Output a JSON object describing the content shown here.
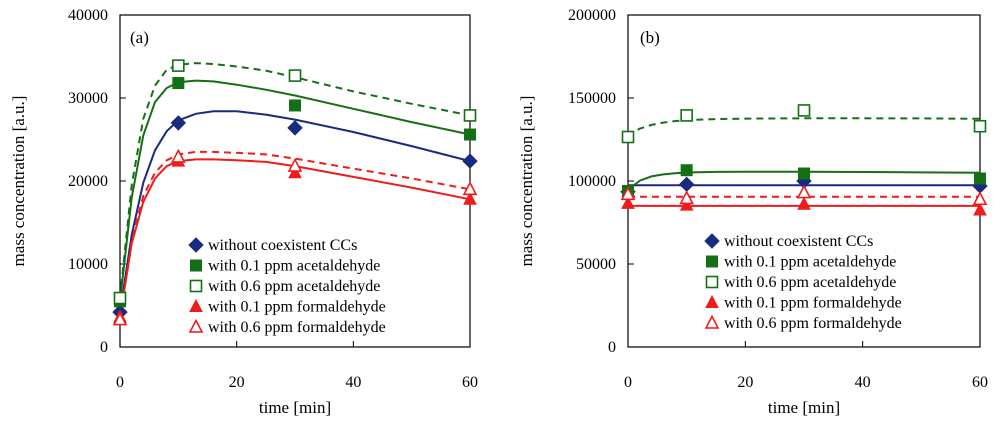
{
  "chart_data": [
    {
      "type": "scatter",
      "panel_label": "(a)",
      "xlabel": "time [min]",
      "ylabel": "mass concentration [a.u.]",
      "xlim": [
        0,
        60
      ],
      "ylim": [
        0,
        40000
      ],
      "xticks": [
        0,
        20,
        40,
        60
      ],
      "yticks": [
        0,
        10000,
        20000,
        30000,
        40000
      ],
      "legend_position": "lower-right",
      "series": [
        {
          "key": "none",
          "name": "without coexistent CCs",
          "color": "#1a2a80",
          "marker": "diamond",
          "filled": true,
          "dash": false,
          "x": [
            0,
            10,
            30,
            60
          ],
          "y": [
            4200,
            27000,
            26400,
            22400
          ],
          "fit": [
            [
              0,
              4200
            ],
            [
              2,
              13500
            ],
            [
              4,
              19800
            ],
            [
              6,
              23700
            ],
            [
              8,
              26000
            ],
            [
              10,
              27300
            ],
            [
              13,
              28100
            ],
            [
              16,
              28400
            ],
            [
              20,
              28400
            ],
            [
              25,
              28000
            ],
            [
              30,
              27400
            ],
            [
              40,
              25900
            ],
            [
              50,
              24200
            ],
            [
              60,
              22400
            ]
          ]
        },
        {
          "key": "acet01",
          "name": "with 0.1 ppm acetaldehyde",
          "color": "#157015",
          "marker": "square",
          "filled": true,
          "dash": false,
          "x": [
            0,
            10,
            30,
            60
          ],
          "y": [
            5500,
            31800,
            29100,
            25600
          ],
          "fit": [
            [
              0,
              5500
            ],
            [
              2,
              18000
            ],
            [
              4,
              25500
            ],
            [
              6,
              29500
            ],
            [
              8,
              31200
            ],
            [
              10,
              31900
            ],
            [
              13,
              32100
            ],
            [
              16,
              32000
            ],
            [
              20,
              31600
            ],
            [
              25,
              31000
            ],
            [
              30,
              30300
            ],
            [
              40,
              28700
            ],
            [
              50,
              27100
            ],
            [
              60,
              25600
            ]
          ]
        },
        {
          "key": "acet06",
          "name": "with 0.6 ppm acetaldehyde",
          "color": "#157015",
          "marker": "square",
          "filled": false,
          "dash": true,
          "x": [
            0,
            10,
            30,
            60
          ],
          "y": [
            5900,
            33900,
            32700,
            27900
          ],
          "fit": [
            [
              0,
              5900
            ],
            [
              2,
              19500
            ],
            [
              4,
              27500
            ],
            [
              6,
              31500
            ],
            [
              8,
              33400
            ],
            [
              10,
              34000
            ],
            [
              13,
              34200
            ],
            [
              16,
              34100
            ],
            [
              20,
              33800
            ],
            [
              25,
              33300
            ],
            [
              30,
              32500
            ],
            [
              40,
              30800
            ],
            [
              50,
              29300
            ],
            [
              60,
              27900
            ]
          ]
        },
        {
          "key": "form01",
          "name": "with 0.1 ppm formaldehyde",
          "color": "#ee1c1c",
          "marker": "triangle",
          "filled": true,
          "dash": false,
          "x": [
            0,
            10,
            30,
            60
          ],
          "y": [
            3600,
            22400,
            21000,
            17800
          ],
          "fit": [
            [
              0,
              3600
            ],
            [
              2,
              12500
            ],
            [
              4,
              17500
            ],
            [
              6,
              20300
            ],
            [
              8,
              21800
            ],
            [
              10,
              22400
            ],
            [
              13,
              22600
            ],
            [
              16,
              22600
            ],
            [
              20,
              22500
            ],
            [
              25,
              22300
            ],
            [
              30,
              21800
            ],
            [
              40,
              20500
            ],
            [
              50,
              19200
            ],
            [
              60,
              17800
            ]
          ]
        },
        {
          "key": "form06",
          "name": "with 0.6 ppm formaldehyde",
          "color": "#ee1c1c",
          "marker": "triangle",
          "filled": false,
          "dash": true,
          "x": [
            0,
            10,
            30,
            60
          ],
          "y": [
            3300,
            22900,
            21800,
            19000
          ],
          "fit": [
            [
              0,
              3300
            ],
            [
              2,
              12800
            ],
            [
              4,
              18200
            ],
            [
              6,
              21000
            ],
            [
              8,
              22500
            ],
            [
              10,
              23200
            ],
            [
              13,
              23500
            ],
            [
              16,
              23500
            ],
            [
              20,
              23400
            ],
            [
              25,
              23200
            ],
            [
              30,
              22700
            ],
            [
              40,
              21500
            ],
            [
              50,
              20300
            ],
            [
              60,
              19000
            ]
          ]
        }
      ]
    },
    {
      "type": "scatter",
      "panel_label": "(b)",
      "xlabel": "time [min]",
      "ylabel": "mass concentration [a.u.]",
      "xlim": [
        0,
        60
      ],
      "ylim": [
        0,
        200000
      ],
      "xticks": [
        0,
        20,
        40,
        60
      ],
      "yticks": [
        0,
        50000,
        100000,
        150000,
        200000
      ],
      "legend_position": "lower-right",
      "series": [
        {
          "key": "none",
          "name": "without coexistent CCs",
          "color": "#1a2a80",
          "marker": "diamond",
          "filled": true,
          "dash": false,
          "x": [
            0,
            10,
            30,
            60
          ],
          "y": [
            93500,
            98000,
            100000,
            97000
          ],
          "fit": [
            [
              0,
              97500
            ],
            [
              60,
              97500
            ]
          ]
        },
        {
          "key": "acet01",
          "name": "with 0.1 ppm acetaldehyde",
          "color": "#157015",
          "marker": "square",
          "filled": true,
          "dash": false,
          "x": [
            0,
            10,
            30,
            60
          ],
          "y": [
            94000,
            106500,
            104500,
            101500
          ],
          "fit": [
            [
              0,
              93500
            ],
            [
              1,
              97500
            ],
            [
              2,
              100200
            ],
            [
              4,
              102800
            ],
            [
              6,
              104000
            ],
            [
              8,
              104700
            ],
            [
              10,
              105100
            ],
            [
              15,
              105500
            ],
            [
              20,
              105600
            ],
            [
              30,
              105600
            ],
            [
              40,
              105400
            ],
            [
              50,
              105200
            ],
            [
              60,
              105000
            ]
          ]
        },
        {
          "key": "acet06",
          "name": "with 0.6 ppm acetaldehyde",
          "color": "#157015",
          "marker": "square",
          "filled": false,
          "dash": true,
          "x": [
            0,
            10,
            30,
            60
          ],
          "y": [
            126500,
            139500,
            142500,
            133000
          ],
          "fit": [
            [
              0,
              126500
            ],
            [
              1,
              129500
            ],
            [
              2,
              131500
            ],
            [
              4,
              133800
            ],
            [
              6,
              135200
            ],
            [
              8,
              136100
            ],
            [
              10,
              136700
            ],
            [
              15,
              137300
            ],
            [
              20,
              137600
            ],
            [
              30,
              137800
            ],
            [
              40,
              137800
            ],
            [
              50,
              137700
            ],
            [
              60,
              137500
            ]
          ]
        },
        {
          "key": "form01",
          "name": "with 0.1 ppm formaldehyde",
          "color": "#ee1c1c",
          "marker": "triangle",
          "filled": true,
          "dash": false,
          "x": [
            0,
            10,
            30,
            60
          ],
          "y": [
            86500,
            85500,
            86000,
            82500
          ],
          "fit": [
            [
              0,
              85000
            ],
            [
              60,
              85000
            ]
          ]
        },
        {
          "key": "form06",
          "name": "with 0.6 ppm formaldehyde",
          "color": "#ee1c1c",
          "marker": "triangle",
          "filled": false,
          "dash": true,
          "x": [
            0,
            10,
            30,
            60
          ],
          "y": [
            92000,
            89500,
            93000,
            89000
          ],
          "fit": [
            [
              0,
              90500
            ],
            [
              60,
              90500
            ]
          ]
        }
      ]
    }
  ]
}
